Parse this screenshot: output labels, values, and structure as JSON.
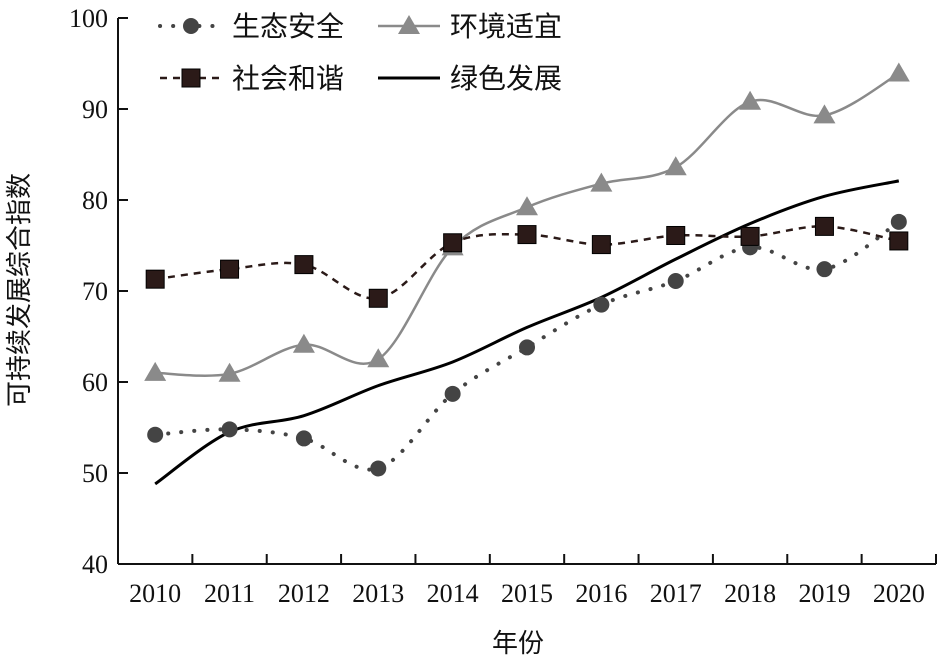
{
  "chart_data": {
    "type": "line",
    "xlabel": "年份",
    "ylabel": "可持续发展综合指数",
    "ylim": [
      40,
      100
    ],
    "yticks": [
      40,
      50,
      60,
      70,
      80,
      90,
      100
    ],
    "categories": [
      "2010",
      "2011",
      "2012",
      "2013",
      "2014",
      "2015",
      "2016",
      "2017",
      "2018",
      "2019",
      "2020"
    ],
    "legend_position": "top-left",
    "grid": false,
    "series": [
      {
        "name": "生态安全",
        "marker": "circle",
        "line_style": "dotted",
        "color": "#444444",
        "values": [
          54.2,
          54.8,
          53.8,
          50.5,
          58.7,
          63.8,
          68.5,
          71.1,
          74.8,
          72.4,
          77.6
        ]
      },
      {
        "name": "环境适宜",
        "marker": "triangle",
        "line_style": "solid",
        "color": "#8a8a8a",
        "values": [
          61.0,
          60.9,
          64.1,
          62.5,
          74.8,
          79.2,
          81.8,
          83.6,
          90.8,
          89.3,
          93.9
        ]
      },
      {
        "name": "社会和谐",
        "marker": "square",
        "line_style": "dashed",
        "color": "#2b1a18",
        "values": [
          71.3,
          72.4,
          72.9,
          69.2,
          75.3,
          76.2,
          75.1,
          76.1,
          76.0,
          77.1,
          75.5
        ]
      },
      {
        "name": "绿色发展",
        "marker": "none",
        "line_style": "solid",
        "color": "#000000",
        "values": [
          48.8,
          54.5,
          56.3,
          59.6,
          62.2,
          66.0,
          69.3,
          73.5,
          77.4,
          80.4,
          82.1
        ]
      }
    ]
  }
}
